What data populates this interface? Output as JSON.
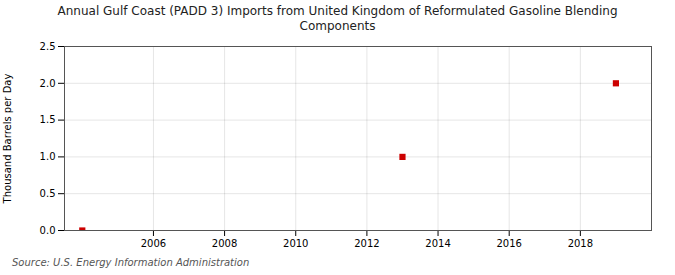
{
  "chart_data": {
    "type": "scatter",
    "title": "Annual Gulf Coast (PADD 3) Imports from United Kingdom of Reformulated Gasoline Blending\nComponents",
    "ylabel": "Thousand Barrels per Day",
    "source": "Source: U.S. Energy Information Administration",
    "x": [
      2004,
      2013,
      2019
    ],
    "values": [
      0.0,
      1.0,
      2.0
    ],
    "color": "#cc0000",
    "marker": "square",
    "xlim": [
      2003.5,
      2020
    ],
    "xticks": [
      2006,
      2008,
      2010,
      2012,
      2014,
      2016,
      2018
    ],
    "ylim": [
      0,
      2.5
    ],
    "yticks": [
      {
        "value": 0.0,
        "label": "0.0"
      },
      0.5,
      {
        "value": 1.0,
        "label": "1.0"
      },
      1.5,
      {
        "value": 2.0,
        "label": "2.0"
      },
      2.5
    ],
    "grid": true
  }
}
